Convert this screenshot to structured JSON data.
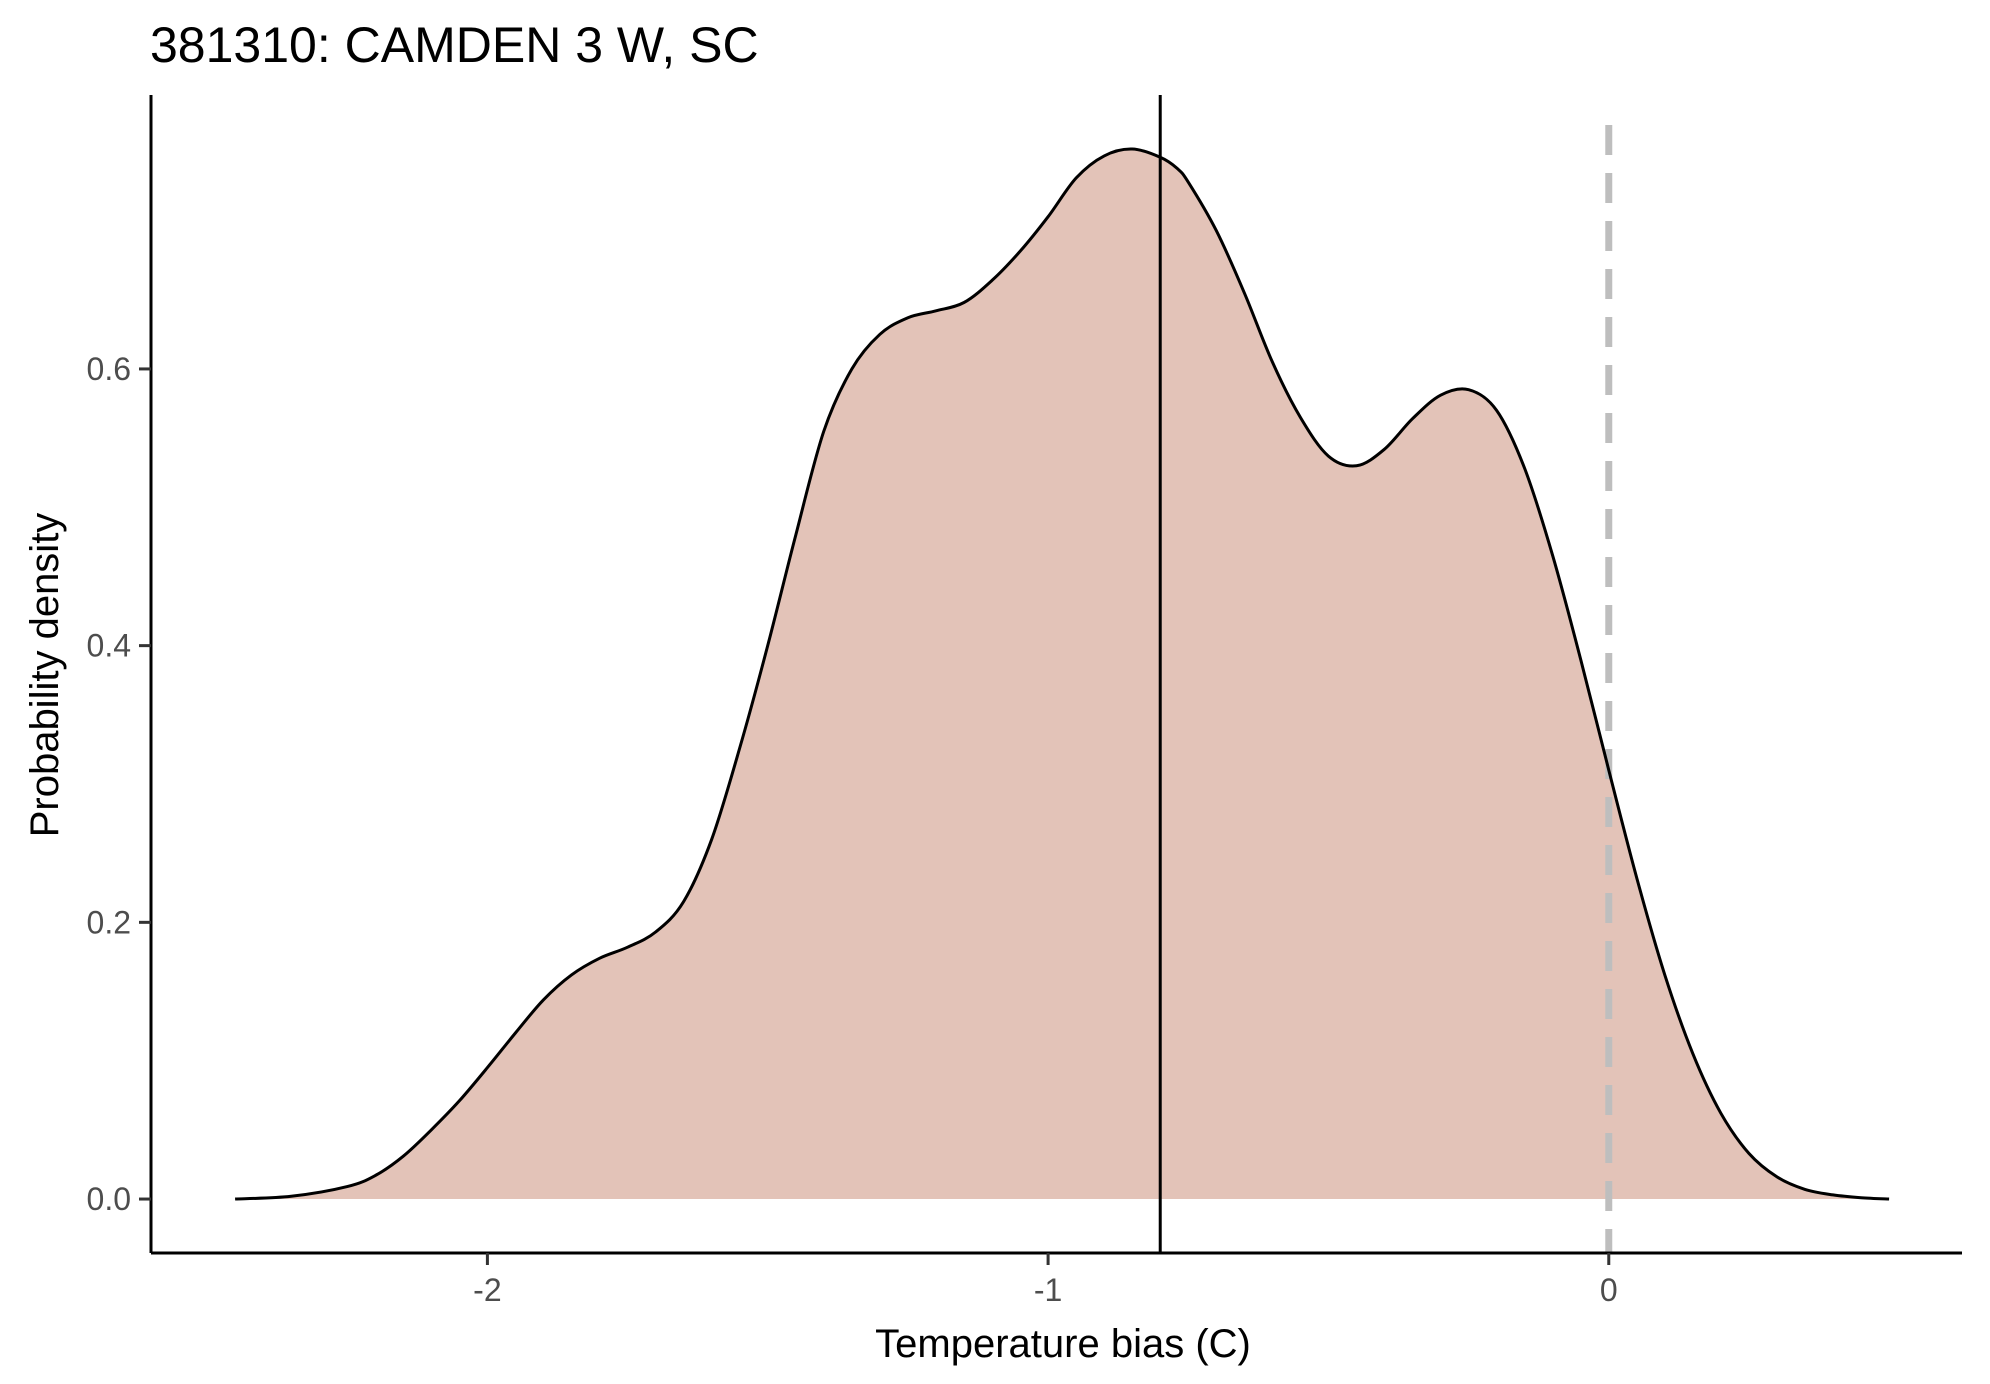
{
  "chart_data": {
    "type": "area",
    "title": "381310: CAMDEN 3 W, SC",
    "xlabel": "Temperature bias (C)",
    "ylabel": "Probability density",
    "xlim": [
      -2.6,
      0.63
    ],
    "ylim": [
      -0.039,
      0.798
    ],
    "x_ticks": [
      -2,
      -1,
      0
    ],
    "x_tick_labels": [
      "-2",
      "-1",
      "0"
    ],
    "y_ticks": [
      0.0,
      0.2,
      0.4,
      0.6
    ],
    "y_tick_labels": [
      "0.0",
      "0.2",
      "0.4",
      "0.6"
    ],
    "grid": false,
    "legend": "none",
    "fill_color": "#e3c3b8",
    "line_color": "#000000",
    "mean_line_x": -0.8,
    "mean_line_color": "#000000",
    "reference_line_x": 0,
    "reference_line_color": "#bebebe",
    "series": [
      {
        "x": [
          -2.45,
          -2.35,
          -2.25,
          -2.2,
          -2.15,
          -2.1,
          -2.05,
          -2.0,
          -1.95,
          -1.9,
          -1.85,
          -1.8,
          -1.75,
          -1.7,
          -1.65,
          -1.6,
          -1.55,
          -1.5,
          -1.45,
          -1.4,
          -1.35,
          -1.3,
          -1.25,
          -1.2,
          -1.15,
          -1.1,
          -1.05,
          -1.0,
          -0.95,
          -0.9,
          -0.85,
          -0.8,
          -0.77,
          -0.75,
          -0.7,
          -0.65,
          -0.6,
          -0.55,
          -0.5,
          -0.45,
          -0.4,
          -0.35,
          -0.3,
          -0.25,
          -0.2,
          -0.15,
          -0.1,
          -0.05,
          0.0,
          0.05,
          0.1,
          0.15,
          0.2,
          0.25,
          0.3,
          0.35,
          0.4,
          0.45,
          0.5
        ],
        "y": [
          0.0,
          0.002,
          0.009,
          0.017,
          0.031,
          0.05,
          0.071,
          0.095,
          0.12,
          0.144,
          0.162,
          0.174,
          0.182,
          0.193,
          0.215,
          0.26,
          0.326,
          0.4,
          0.48,
          0.555,
          0.6,
          0.625,
          0.637,
          0.642,
          0.648,
          0.664,
          0.685,
          0.71,
          0.738,
          0.754,
          0.759,
          0.753,
          0.745,
          0.735,
          0.7,
          0.655,
          0.605,
          0.565,
          0.537,
          0.53,
          0.542,
          0.564,
          0.581,
          0.585,
          0.57,
          0.528,
          0.465,
          0.39,
          0.31,
          0.232,
          0.162,
          0.105,
          0.062,
          0.033,
          0.016,
          0.007,
          0.003,
          0.001,
          0.0
        ]
      }
    ]
  }
}
